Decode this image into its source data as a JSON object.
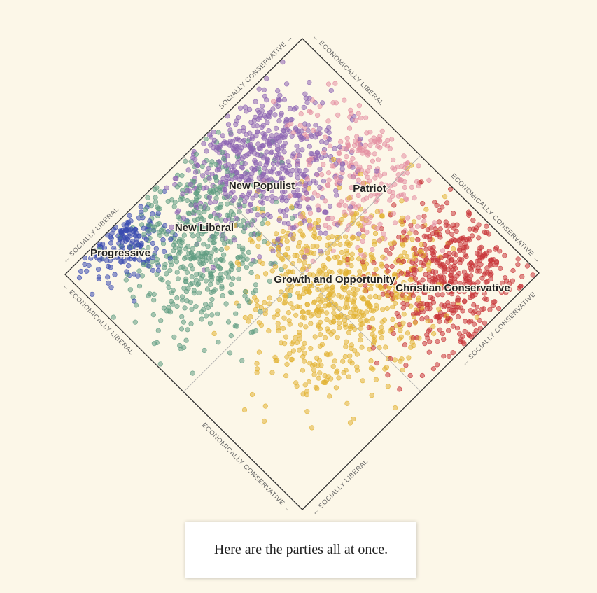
{
  "axis_labels": {
    "top_left": "SOCIALLY CONSERVATIVE →",
    "top_right": "← ECONOMICALLY LIBERAL",
    "right_upper": "ECONOMICALLY CONSERVATIVE →",
    "left_upper": "← SOCIALLY LIBERAL",
    "left_lower": "← ECONOMICALLY LIBERAL",
    "right_lower": "← SOCIALLY CONSERVATIVE",
    "bottom_left": "ECONOMICALLY CONSERVATIVE →",
    "bottom_right": "← SOCIALLY LIBERAL"
  },
  "parties": [
    {
      "label": "Progressive",
      "color": "#3b4cb0"
    },
    {
      "label": "New Liberal",
      "color": "#5f9c82"
    },
    {
      "label": "New Populist",
      "color": "#8c64b2"
    },
    {
      "label": "Patriot",
      "color": "#e48fa2"
    },
    {
      "label": "Growth and Opportunity",
      "color": "#e2b233"
    },
    {
      "label": "Christian Conservative",
      "color": "#c9363a"
    }
  ],
  "caption": "Here are the parties all at once."
}
